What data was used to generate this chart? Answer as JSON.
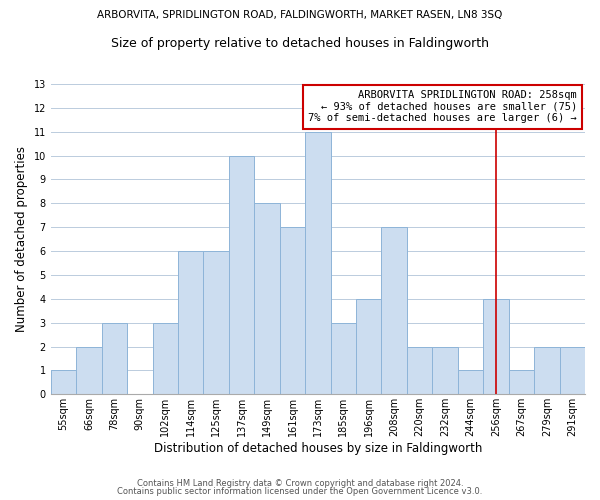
{
  "title_line1": "ARBORVITA, SPRIDLINGTON ROAD, FALDINGWORTH, MARKET RASEN, LN8 3SQ",
  "title_line2": "Size of property relative to detached houses in Faldingworth",
  "xlabel": "Distribution of detached houses by size in Faldingworth",
  "ylabel": "Number of detached properties",
  "bar_labels": [
    "55sqm",
    "66sqm",
    "78sqm",
    "90sqm",
    "102sqm",
    "114sqm",
    "125sqm",
    "137sqm",
    "149sqm",
    "161sqm",
    "173sqm",
    "185sqm",
    "196sqm",
    "208sqm",
    "220sqm",
    "232sqm",
    "244sqm",
    "256sqm",
    "267sqm",
    "279sqm",
    "291sqm"
  ],
  "bar_values": [
    1,
    2,
    3,
    0,
    3,
    6,
    6,
    10,
    8,
    7,
    11,
    3,
    4,
    7,
    2,
    2,
    1,
    4,
    1,
    2,
    2
  ],
  "bar_color": "#ccddf0",
  "bar_edge_color": "#8eb4d8",
  "grid_color": "#bbccdd",
  "annotation_line1": "ARBORVITA SPRIDLINGTON ROAD: 258sqm",
  "annotation_line2": "← 93% of detached houses are smaller (75)",
  "annotation_line3": "7% of semi-detached houses are larger (6) →",
  "annotation_box_color": "#ffffff",
  "annotation_border_color": "#cc0000",
  "marker_line_color": "#cc0000",
  "ylim": [
    0,
    13
  ],
  "yticks": [
    0,
    1,
    2,
    3,
    4,
    5,
    6,
    7,
    8,
    9,
    10,
    11,
    12,
    13
  ],
  "footer1": "Contains HM Land Registry data © Crown copyright and database right 2024.",
  "footer2": "Contains public sector information licensed under the Open Government Licence v3.0.",
  "bg_color": "#ffffff",
  "title1_fontsize": 7.5,
  "title2_fontsize": 9,
  "axis_label_fontsize": 8.5,
  "tick_fontsize": 7,
  "annotation_fontsize": 7.5,
  "footer_fontsize": 6,
  "marker_idx": 17
}
